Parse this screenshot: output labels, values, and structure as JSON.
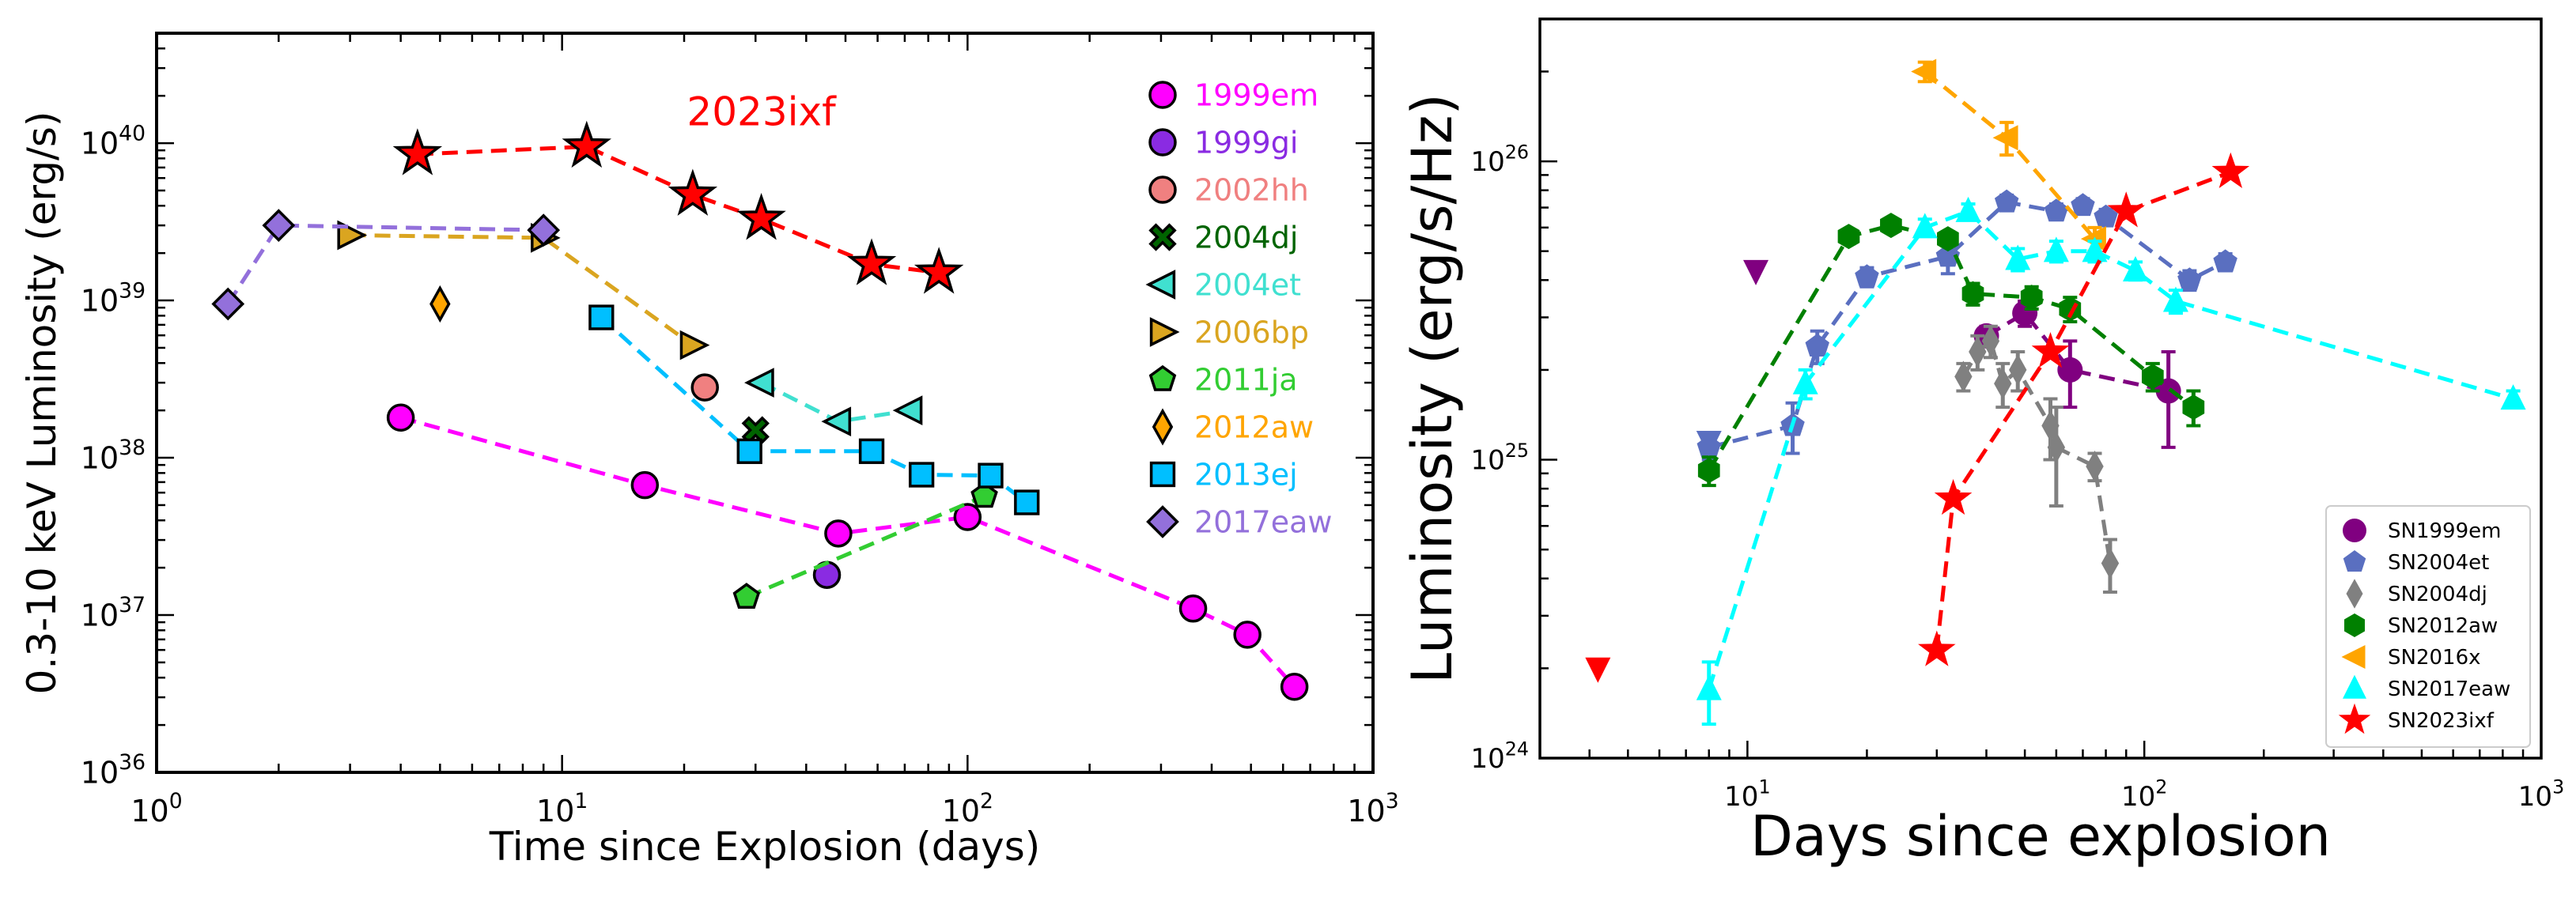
{
  "chart_data": [
    {
      "type": "scatter",
      "xscale": "log",
      "yscale": "log",
      "xlabel": "Time since Explosion (days)",
      "ylabel": "0.3-10 keV Luminosity (erg/s)",
      "xlim": [
        1,
        1000
      ],
      "ylim": [
        1e+36,
        5e+40
      ],
      "x_ticks": [
        {
          "base": "10",
          "exp": "0",
          "value": 1
        },
        {
          "base": "10",
          "exp": "1",
          "value": 10
        },
        {
          "base": "10",
          "exp": "2",
          "value": 100
        },
        {
          "base": "10",
          "exp": "3",
          "value": 1000
        }
      ],
      "y_ticks": [
        {
          "base": "10",
          "exp": "36",
          "value": 1e+36
        },
        {
          "base": "10",
          "exp": "37",
          "value": 1e+37
        },
        {
          "base": "10",
          "exp": "38",
          "value": 1e+38
        },
        {
          "base": "10",
          "exp": "39",
          "value": 1e+39
        },
        {
          "base": "10",
          "exp": "40",
          "value": 1e+40
        }
      ],
      "annotation": {
        "text": "2023ixf",
        "x": 31,
        "y": 1.3e+40,
        "color": "#ff0000"
      },
      "legend_position": "upper right",
      "legend_style": "colored-text",
      "series": [
        {
          "name": "1999em",
          "marker": "circle",
          "color": "#ff00ff",
          "line": true,
          "x": [
            4,
            16,
            48,
            100,
            360,
            490,
            640
          ],
          "y": [
            1.8e+38,
            6.7e+37,
            3.3e+37,
            4.2e+37,
            1.1e+37,
            7.5e+36,
            3.5e+36
          ]
        },
        {
          "name": "1999gi",
          "marker": "circle",
          "color": "#8a2be2",
          "line": false,
          "x": [
            45
          ],
          "y": [
            1.8e+37
          ]
        },
        {
          "name": "2002hh",
          "marker": "circle",
          "color": "#f08080",
          "line": false,
          "x": [
            22.5
          ],
          "y": [
            2.8e+38
          ]
        },
        {
          "name": "2004dj",
          "marker": "x",
          "color": "#006400",
          "line": false,
          "x": [
            30
          ],
          "y": [
            1.5e+38
          ]
        },
        {
          "name": "2004et",
          "marker": "triangle-left",
          "color": "#40e0d0",
          "line": true,
          "x": [
            31,
            48,
            72
          ],
          "y": [
            3e+38,
            1.7e+38,
            2e+38
          ]
        },
        {
          "name": "2006bp",
          "marker": "triangle-right",
          "color": "#daa520",
          "line": true,
          "x": [
            3,
            9,
            21
          ],
          "y": [
            2.6e+39,
            2.5e+39,
            5.2e+38
          ]
        },
        {
          "name": "2011ja",
          "marker": "pentagon",
          "color": "#32cd32",
          "line": true,
          "x": [
            28.5,
            110
          ],
          "y": [
            1.3e+37,
            5.7e+37
          ]
        },
        {
          "name": "2012aw",
          "marker": "thin-diamond",
          "color": "#ffa500",
          "line": false,
          "x": [
            5
          ],
          "y": [
            9.5e+38
          ]
        },
        {
          "name": "2013ej",
          "marker": "square",
          "color": "#00bfff",
          "line": true,
          "x": [
            12.5,
            29,
            58,
            77,
            114,
            140
          ],
          "y": [
            7.8e+38,
            1.1e+38,
            1.1e+38,
            7.8e+37,
            7.7e+37,
            5.2e+37
          ]
        },
        {
          "name": "2017eaw",
          "marker": "diamond",
          "color": "#9370db",
          "line": true,
          "x": [
            1.5,
            2,
            9
          ],
          "y": [
            9.5e+38,
            3e+39,
            2.8e+39
          ]
        },
        {
          "name": "2023ixf",
          "marker": "star",
          "color": "#ff0000",
          "line": true,
          "legend": false,
          "x": [
            4.4,
            11.5,
            21,
            31,
            58,
            85
          ],
          "y": [
            8.5e+39,
            9.5e+39,
            4.7e+39,
            3.3e+39,
            1.7e+39,
            1.5e+39
          ]
        }
      ]
    },
    {
      "type": "scatter",
      "xscale": "log",
      "yscale": "log",
      "xlabel": "Days since explosion",
      "ylabel": "Luminosity (erg/s/Hz)",
      "xlim": [
        3,
        1000
      ],
      "ylim": [
        1e+24,
        3e+26
      ],
      "x_ticks": [
        {
          "base": "10",
          "exp": "1",
          "value": 10
        },
        {
          "base": "10",
          "exp": "2",
          "value": 100
        },
        {
          "base": "10",
          "exp": "3",
          "value": 1000
        }
      ],
      "y_ticks": [
        {
          "base": "10",
          "exp": "24",
          "value": 1e+24
        },
        {
          "base": "10",
          "exp": "25",
          "value": 1e+25
        },
        {
          "base": "10",
          "exp": "26",
          "value": 1e+26
        }
      ],
      "legend_position": "lower right",
      "series": [
        {
          "name": "SN1999em",
          "marker": "circle",
          "color": "#800080",
          "line": true,
          "x": [
            40,
            50,
            65,
            115
          ],
          "y": [
            2.6e+25,
            3.1e+25,
            2e+25,
            1.7e+25
          ],
          "err": [
            2e+24,
            3e+24,
            5e+24,
            6e+24
          ]
        },
        {
          "name": "SN2004et",
          "marker": "pentagon",
          "color": "#5a6fc0",
          "line": true,
          "x": [
            8,
            13,
            15,
            20,
            32,
            45,
            60,
            70,
            80,
            130,
            160
          ],
          "y": [
            1.1e+25,
            1.3e+25,
            2.4e+25,
            4.1e+25,
            4.8e+25,
            7.3e+25,
            6.8e+25,
            7.1e+25,
            6.5e+25,
            4e+25,
            4.6e+25
          ],
          "err": [
            1e+24,
            2.5e+24,
            3e+24,
            3e+24,
            6e+24,
            4e+24,
            4e+24,
            4e+24,
            4e+24,
            3e+24,
            3e+24
          ]
        },
        {
          "name": "SN2004dj",
          "marker": "thin-diamond",
          "color": "#808080",
          "line": true,
          "x": [
            35,
            38,
            41,
            44,
            48,
            58,
            60,
            75,
            82
          ],
          "y": [
            1.9e+25,
            2.3e+25,
            2.5e+25,
            1.8e+25,
            2e+25,
            1.3e+25,
            1.1e+25,
            9.5e+24,
            4.5e+24
          ],
          "err": [
            2e+24,
            3e+24,
            3e+24,
            3e+24,
            3e+24,
            3e+24,
            4e+24,
            1e+24,
            9e+23
          ]
        },
        {
          "name": "SN2012aw",
          "marker": "hexagon",
          "color": "#008000",
          "line": true,
          "x": [
            8,
            18,
            23,
            32,
            37,
            52,
            65,
            105,
            133
          ],
          "y": [
            9.2e+24,
            5.6e+25,
            6.1e+25,
            5.5e+25,
            3.6e+25,
            3.5e+25,
            3.2e+25,
            1.9e+25,
            1.5e+25
          ],
          "err": [
            1e+24,
            3e+24,
            3e+24,
            3e+24,
            3e+24,
            3e+24,
            3e+24,
            2e+24,
            2e+24
          ]
        },
        {
          "name": "SN2016x",
          "marker": "triangle-left",
          "color": "#ffa500",
          "line": true,
          "x": [
            28,
            45,
            75
          ],
          "y": [
            2e+26,
            1.2e+26,
            5.5e+25
          ],
          "err": [
            1.5e+25,
            1.5e+25,
            5e+24
          ]
        },
        {
          "name": "SN2017eaw",
          "marker": "triangle-up",
          "color": "#00ffff",
          "line": true,
          "x": [
            8,
            14,
            28,
            36,
            48,
            60,
            75,
            95,
            120,
            850
          ],
          "y": [
            1.7e+24,
            1.8e+25,
            6e+25,
            6.8e+25,
            4.7e+25,
            5e+25,
            5e+25,
            4.3e+25,
            3.4e+25,
            1.6e+25
          ],
          "err": [
            4e+23,
            2e+24,
            4e+24,
            4e+24,
            4e+24,
            4e+24,
            4e+24,
            3e+24,
            3e+24,
            1e+24
          ]
        },
        {
          "name": "SN2023ixf",
          "marker": "star",
          "color": "#ff0000",
          "line": true,
          "x": [
            30,
            33,
            58,
            90,
            165
          ],
          "y": [
            2.3e+24,
            7.4e+24,
            2.3e+25,
            6.8e+25,
            9.2e+25
          ]
        },
        {
          "name": "",
          "marker": "triangle-down",
          "color": "#800080",
          "line": false,
          "legend": false,
          "x": [
            10.5
          ],
          "y": [
            4.3e+25
          ]
        },
        {
          "name": "",
          "marker": "triangle-down",
          "color": "#5a6fc0",
          "line": false,
          "legend": false,
          "x": [
            8
          ],
          "y": [
            1.15e+25
          ]
        },
        {
          "name": "",
          "marker": "triangle-down",
          "color": "#ff0000",
          "line": false,
          "legend": false,
          "x": [
            4.2
          ],
          "y": [
            2e+24
          ]
        }
      ]
    }
  ]
}
